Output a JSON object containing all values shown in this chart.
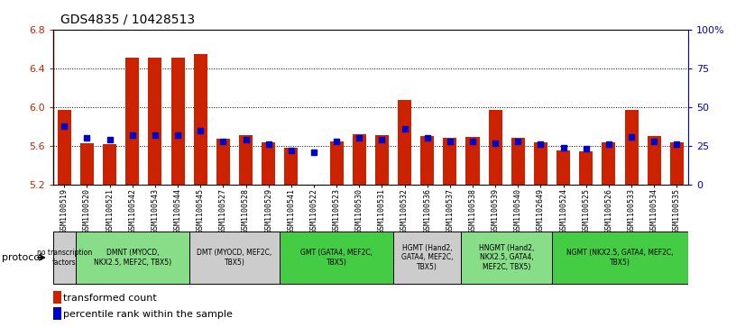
{
  "title": "GDS4835 / 10428513",
  "samples": [
    "GSM1100519",
    "GSM1100520",
    "GSM1100521",
    "GSM1100542",
    "GSM1100543",
    "GSM1100544",
    "GSM1100545",
    "GSM1100527",
    "GSM1100528",
    "GSM1100529",
    "GSM1100541",
    "GSM1100522",
    "GSM1100523",
    "GSM1100530",
    "GSM1100531",
    "GSM1100532",
    "GSM1100536",
    "GSM1100537",
    "GSM1100538",
    "GSM1100539",
    "GSM1100540",
    "GSM1102649",
    "GSM1100524",
    "GSM1100525",
    "GSM1100526",
    "GSM1100533",
    "GSM1100534",
    "GSM1100535"
  ],
  "bar_values": [
    5.97,
    5.63,
    5.62,
    6.51,
    6.51,
    6.51,
    6.55,
    5.67,
    5.71,
    5.64,
    5.58,
    5.13,
    5.65,
    5.72,
    5.71,
    6.07,
    5.7,
    5.68,
    5.69,
    5.97,
    5.68,
    5.64,
    5.55,
    5.54,
    5.64,
    5.97,
    5.7,
    5.64
  ],
  "dot_values": [
    38,
    30,
    29,
    32,
    32,
    32,
    35,
    28,
    29,
    26,
    22,
    21,
    28,
    30,
    29,
    36,
    30,
    28,
    28,
    27,
    28,
    26,
    24,
    23,
    26,
    31,
    28,
    26
  ],
  "ylim_left": [
    5.2,
    6.8
  ],
  "ylim_right": [
    0,
    100
  ],
  "yticks_left": [
    5.2,
    5.6,
    6.0,
    6.4,
    6.8
  ],
  "yticks_right": [
    0,
    25,
    50,
    75,
    100
  ],
  "ytick_labels_right": [
    "0",
    "25",
    "50",
    "75",
    "100%"
  ],
  "bar_color": "#cc2200",
  "dot_color": "#0000cc",
  "protocol_groups": [
    {
      "label": "no transcription\nfactors",
      "start": 0,
      "end": 1,
      "color": "#cccccc"
    },
    {
      "label": "DMNT (MYOCD,\nNKX2.5, MEF2C, TBX5)",
      "start": 1,
      "end": 6,
      "color": "#88dd88"
    },
    {
      "label": "DMT (MYOCD, MEF2C,\nTBX5)",
      "start": 6,
      "end": 10,
      "color": "#cccccc"
    },
    {
      "label": "GMT (GATA4, MEF2C,\nTBX5)",
      "start": 10,
      "end": 15,
      "color": "#44cc44"
    },
    {
      "label": "HGMT (Hand2,\nGATA4, MEF2C,\nTBX5)",
      "start": 15,
      "end": 18,
      "color": "#cccccc"
    },
    {
      "label": "HNGMT (Hand2,\nNKX2.5, GATA4,\nMEF2C, TBX5)",
      "start": 18,
      "end": 22,
      "color": "#88dd88"
    },
    {
      "label": "NGMT (NKX2.5, GATA4, MEF2C,\nTBX5)",
      "start": 22,
      "end": 28,
      "color": "#44cc44"
    }
  ]
}
